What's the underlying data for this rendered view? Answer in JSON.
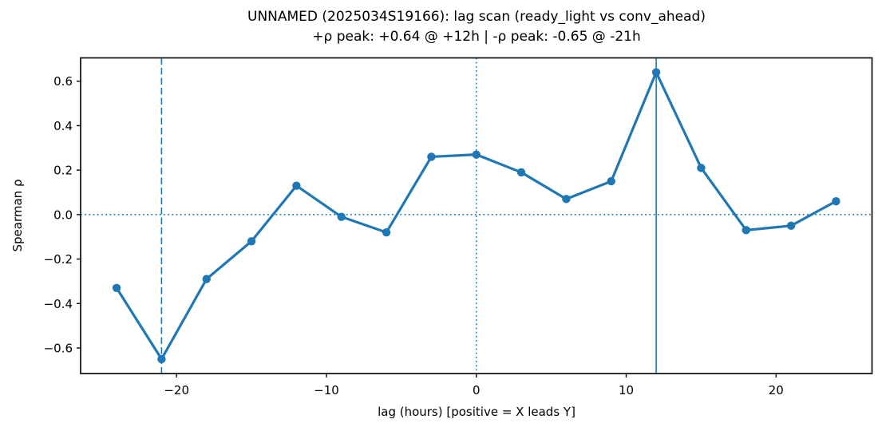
{
  "figure": {
    "kind": "matplotlib-line-chart"
  },
  "chart_data": {
    "type": "line",
    "title": "UNNAMED (2025034S19166): lag scan (ready_light vs conv_ahead)",
    "subtitle": "+ρ peak: +0.64 @ +12h | -ρ peak: -0.65 @ -21h",
    "xlabel": "lag (hours) [positive = X leads Y]",
    "ylabel": "Spearman ρ",
    "series_name": "spearman-rho-vs-lag",
    "x": [
      -24,
      -21,
      -18,
      -15,
      -12,
      -9,
      -6,
      -3,
      0,
      3,
      6,
      9,
      12,
      15,
      18,
      21,
      24
    ],
    "y": [
      -0.33,
      -0.65,
      -0.29,
      -0.12,
      0.13,
      -0.01,
      -0.08,
      0.26,
      0.27,
      0.19,
      0.07,
      0.15,
      0.64,
      0.21,
      -0.07,
      -0.05,
      0.06
    ],
    "xlim": [
      -26.4,
      26.4
    ],
    "ylim": [
      -0.715,
      0.705
    ],
    "xticks": [
      {
        "v": -20,
        "label": "−20"
      },
      {
        "v": -10,
        "label": "−10"
      },
      {
        "v": 0,
        "label": "0"
      },
      {
        "v": 10,
        "label": "10"
      },
      {
        "v": 20,
        "label": "20"
      }
    ],
    "yticks": [
      {
        "v": -0.6,
        "label": "−0.6"
      },
      {
        "v": -0.4,
        "label": "−0.4"
      },
      {
        "v": -0.2,
        "label": "−0.2"
      },
      {
        "v": 0.0,
        "label": "0.0"
      },
      {
        "v": 0.2,
        "label": "0.2"
      },
      {
        "v": 0.4,
        "label": "0.4"
      },
      {
        "v": 0.6,
        "label": "0.6"
      }
    ],
    "grid": false,
    "legend": null,
    "line_color": "#1f77b4",
    "spine_color": "#1a1a1a",
    "pos_peak": {
      "rho": 0.64,
      "lag_hours": 12
    },
    "neg_peak": {
      "rho": -0.65,
      "lag_hours": -21
    },
    "ref_lines": [
      {
        "name": "zero-rho-hline",
        "axis": "y",
        "value": 0,
        "style": "dotted"
      },
      {
        "name": "zero-lag-vline",
        "axis": "x",
        "value": 0,
        "style": "dotted"
      },
      {
        "name": "neg-peak-vline",
        "axis": "x",
        "value": -21,
        "style": "dashed"
      },
      {
        "name": "pos-peak-vline",
        "axis": "x",
        "value": 12,
        "style": "solid"
      }
    ]
  }
}
